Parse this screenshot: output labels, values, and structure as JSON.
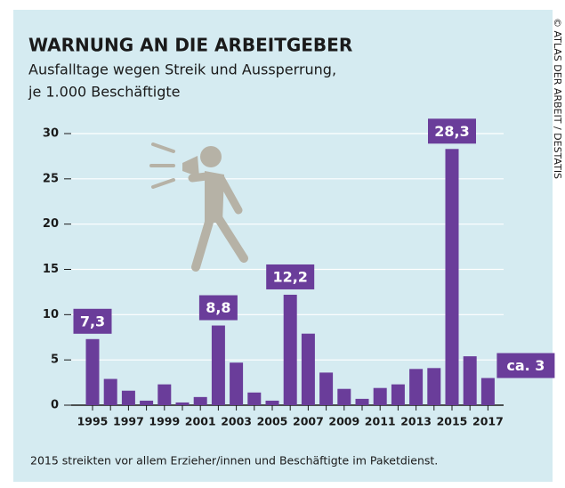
{
  "chart_data": {
    "type": "bar",
    "title": "WARNUNG AN DIE ARBEITGEBER",
    "subtitle": [
      "Ausfalltage wegen Streik und Aussperrung,",
      "je 1.000 Beschäftigte"
    ],
    "categories": [
      "1995",
      null,
      "1997",
      null,
      "1999",
      null,
      "2001",
      null,
      "2003",
      null,
      "2005",
      null,
      "2007",
      null,
      "2009",
      null,
      "2011",
      null,
      "2013",
      null,
      "2015",
      null,
      "2017"
    ],
    "values": [
      7.3,
      2.9,
      1.6,
      0.5,
      2.3,
      0.3,
      0.9,
      8.8,
      4.7,
      1.4,
      0.5,
      12.2,
      7.9,
      3.6,
      1.8,
      0.7,
      1.9,
      2.3,
      4.0,
      4.1,
      28.3,
      5.4,
      3.0
    ],
    "value_labels": [
      "7,3",
      null,
      null,
      null,
      null,
      null,
      null,
      "8,8",
      null,
      null,
      null,
      "12,2",
      null,
      null,
      null,
      null,
      null,
      null,
      null,
      null,
      "28,3",
      null,
      "ca. 3"
    ],
    "color": "#6a3d9a",
    "ylim": [
      0,
      30
    ],
    "yticks": [
      0,
      5,
      10,
      15,
      20,
      25,
      30
    ],
    "grid": true,
    "note": "2015 streikten vor allem Erzieher/innen und Beschäftigte im Paketdienst.",
    "credit": "© ATLAS DER ARBEIT / DESTATIS"
  }
}
